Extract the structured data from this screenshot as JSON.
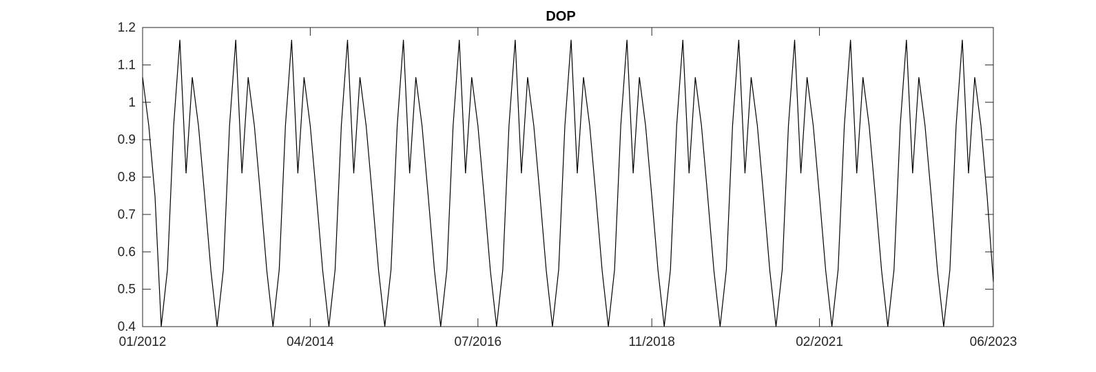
{
  "chart_data": {
    "type": "line",
    "title": "DOP",
    "xlabel": "",
    "ylabel": "",
    "ylim": [
      0.4,
      1.2
    ],
    "xlim": [
      "2012-01",
      "2023-06"
    ],
    "grid": false,
    "y_ticks": [
      "0.4",
      "0.5",
      "0.6",
      "0.7",
      "0.8",
      "0.9",
      "1",
      "1.1",
      "1.2"
    ],
    "x_ticks": [
      "01/2012",
      "04/2014",
      "07/2016",
      "11/2018",
      "02/2021",
      "06/2023"
    ],
    "series": [
      {
        "name": "",
        "color": "#000000",
        "x": [
          "2012-01",
          "2012-02",
          "2012-03",
          "2012-04",
          "2012-05",
          "2012-06",
          "2012-07",
          "2012-08",
          "2012-09",
          "2012-10",
          "2012-11",
          "2012-12",
          "2013-01",
          "2013-02",
          "2013-03",
          "2013-04",
          "2013-05",
          "2013-06",
          "2013-07",
          "2013-08",
          "2013-09",
          "2013-10",
          "2013-11",
          "2013-12",
          "2014-01",
          "2014-02",
          "2014-03",
          "2014-04",
          "2014-05",
          "2014-06",
          "2014-07",
          "2014-08",
          "2014-09",
          "2014-10",
          "2014-11",
          "2014-12",
          "2015-01",
          "2015-02",
          "2015-03",
          "2015-04",
          "2015-05",
          "2015-06",
          "2015-07",
          "2015-08",
          "2015-09",
          "2015-10",
          "2015-11",
          "2015-12",
          "2016-01",
          "2016-02",
          "2016-03",
          "2016-04",
          "2016-05",
          "2016-06",
          "2016-07",
          "2016-08",
          "2016-09",
          "2016-10",
          "2016-11",
          "2016-12",
          "2017-01",
          "2017-02",
          "2017-03",
          "2017-04",
          "2017-05",
          "2017-06",
          "2017-07",
          "2017-08",
          "2017-09",
          "2017-10",
          "2017-11",
          "2017-12",
          "2018-01",
          "2018-02",
          "2018-03",
          "2018-04",
          "2018-05",
          "2018-06",
          "2018-07",
          "2018-08",
          "2018-09",
          "2018-10",
          "2018-11",
          "2018-12",
          "2019-01",
          "2019-02",
          "2019-03",
          "2019-04",
          "2019-05",
          "2019-06",
          "2019-07",
          "2019-08",
          "2019-09",
          "2019-10",
          "2019-11",
          "2019-12",
          "2020-01",
          "2020-02",
          "2020-03",
          "2020-04",
          "2020-05",
          "2020-06",
          "2020-07",
          "2020-08",
          "2020-09",
          "2020-10",
          "2020-11",
          "2020-12",
          "2021-01",
          "2021-02",
          "2021-03",
          "2021-04",
          "2021-05",
          "2021-06",
          "2021-07",
          "2021-08",
          "2021-09",
          "2021-10",
          "2021-11",
          "2021-12",
          "2022-01",
          "2022-02",
          "2022-03",
          "2022-04",
          "2022-05",
          "2022-06",
          "2022-07",
          "2022-08",
          "2022-09",
          "2022-10",
          "2022-11",
          "2022-12",
          "2023-01",
          "2023-02",
          "2023-03",
          "2023-04",
          "2023-05",
          "2023-06"
        ],
        "y": [
          1.067,
          0.937,
          0.748,
          0.4,
          0.552,
          0.937,
          1.167,
          0.81,
          1.067,
          0.937,
          0.748,
          0.55,
          0.4,
          0.552,
          0.937,
          1.167,
          0.81,
          1.067,
          0.937,
          0.748,
          0.55,
          0.4,
          0.552,
          0.937,
          1.167,
          0.81,
          1.067,
          0.937,
          0.748,
          0.55,
          0.4,
          0.552,
          0.937,
          1.167,
          0.81,
          1.067,
          0.937,
          0.748,
          0.55,
          0.4,
          0.552,
          0.937,
          1.167,
          0.81,
          1.067,
          0.937,
          0.748,
          0.55,
          0.4,
          0.552,
          0.937,
          1.167,
          0.81,
          1.067,
          0.937,
          0.748,
          0.55,
          0.4,
          0.552,
          0.937,
          1.167,
          0.81,
          1.067,
          0.937,
          0.748,
          0.55,
          0.4,
          0.552,
          0.937,
          1.167,
          0.81,
          1.067,
          0.937,
          0.748,
          0.55,
          0.4,
          0.552,
          0.937,
          1.167,
          0.81,
          1.067,
          0.937,
          0.748,
          0.55,
          0.4,
          0.552,
          0.937,
          1.167,
          0.81,
          1.067,
          0.937,
          0.748,
          0.55,
          0.4,
          0.552,
          0.937,
          1.167,
          0.81,
          1.067,
          0.937,
          0.748,
          0.55,
          0.4,
          0.552,
          0.937,
          1.167,
          0.81,
          1.067,
          0.937,
          0.748,
          0.55,
          0.4,
          0.552,
          0.937,
          1.167,
          0.81,
          1.067,
          0.937,
          0.748,
          0.55,
          0.4,
          0.552,
          0.937,
          1.167,
          0.81,
          1.067,
          0.937,
          0.748,
          0.55,
          0.4,
          0.552,
          0.937,
          1.167,
          0.81,
          1.067,
          0.937,
          0.748,
          0.52
        ]
      }
    ]
  }
}
